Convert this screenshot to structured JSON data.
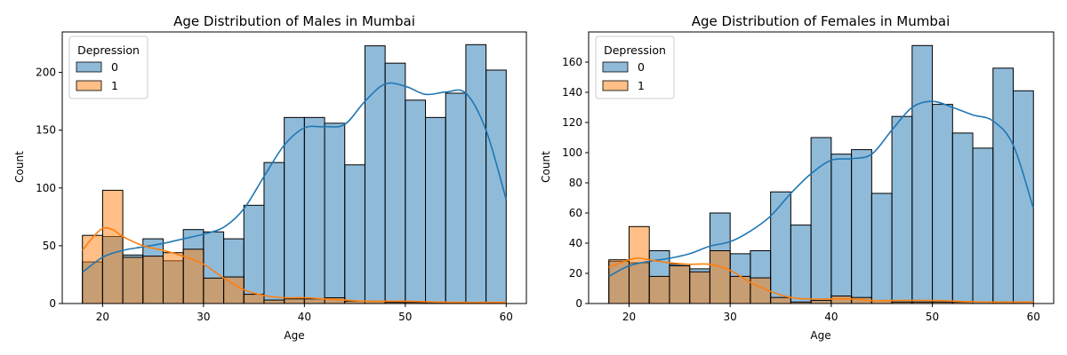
{
  "chart_data": [
    {
      "type": "histogram",
      "title": "Age Distribution of Males in Mumbai",
      "xlabel": "Age",
      "ylabel": "Count",
      "xlim": [
        16,
        62
      ],
      "ylim": [
        0,
        235
      ],
      "xticks": [
        20,
        30,
        40,
        50,
        60
      ],
      "yticks": [
        0,
        50,
        100,
        150,
        200
      ],
      "legend": {
        "title": "Depression",
        "position": "top-left",
        "entries": [
          "0",
          "1"
        ]
      },
      "bin_edges": [
        18,
        20,
        22,
        24,
        26,
        28,
        30,
        32,
        34,
        36,
        38,
        40,
        42,
        44,
        46,
        48,
        50,
        52,
        54,
        56,
        58,
        60
      ],
      "series": [
        {
          "name": "0",
          "color": "#1f77b4",
          "counts": [
            36,
            58,
            42,
            56,
            37,
            64,
            62,
            56,
            85,
            122,
            161,
            161,
            156,
            120,
            223,
            208,
            176,
            161,
            182,
            224,
            202
          ],
          "kde": [
            [
              18,
              27
            ],
            [
              20,
              40
            ],
            [
              22,
              46
            ],
            [
              24,
              49
            ],
            [
              26,
              52
            ],
            [
              28,
              56
            ],
            [
              30,
              60
            ],
            [
              32,
              66
            ],
            [
              34,
              82
            ],
            [
              36,
              110
            ],
            [
              38,
              137
            ],
            [
              40,
              152
            ],
            [
              42,
              153
            ],
            [
              44,
              155
            ],
            [
              46,
              175
            ],
            [
              48,
              190
            ],
            [
              50,
              188
            ],
            [
              52,
              181
            ],
            [
              54,
              183
            ],
            [
              56,
              182
            ],
            [
              58,
              150
            ],
            [
              60,
              90
            ]
          ]
        },
        {
          "name": "1",
          "color": "#ff7f0e",
          "counts": [
            59,
            98,
            40,
            41,
            44,
            47,
            22,
            23,
            8,
            3,
            4,
            4,
            5,
            2,
            2,
            1,
            1,
            1,
            1,
            1,
            1
          ],
          "kde": [
            [
              18,
              46
            ],
            [
              19,
              57
            ],
            [
              20,
              65
            ],
            [
              21,
              64
            ],
            [
              22,
              58
            ],
            [
              24,
              50
            ],
            [
              26,
              46
            ],
            [
              28,
              41
            ],
            [
              30,
              34
            ],
            [
              32,
              22
            ],
            [
              34,
              12
            ],
            [
              36,
              7
            ],
            [
              38,
              5
            ],
            [
              40,
              5
            ],
            [
              42,
              4
            ],
            [
              44,
              3
            ],
            [
              46,
              2
            ],
            [
              50,
              2
            ],
            [
              55,
              1
            ],
            [
              60,
              1
            ]
          ]
        }
      ]
    },
    {
      "type": "histogram",
      "title": "Age Distribution of Females in Mumbai",
      "xlabel": "Age",
      "ylabel": "Count",
      "xlim": [
        16,
        62
      ],
      "ylim": [
        0,
        180
      ],
      "xticks": [
        20,
        30,
        40,
        50,
        60
      ],
      "yticks": [
        0,
        20,
        40,
        60,
        80,
        100,
        120,
        140,
        160
      ],
      "legend": {
        "title": "Depression",
        "position": "top-left",
        "entries": [
          "0",
          "1"
        ]
      },
      "bin_edges": [
        18,
        20,
        22,
        24,
        26,
        28,
        30,
        32,
        34,
        36,
        38,
        40,
        42,
        44,
        46,
        48,
        50,
        52,
        54,
        56,
        58,
        60
      ],
      "series": [
        {
          "name": "0",
          "color": "#1f77b4",
          "counts": [
            28,
            27,
            35,
            26,
            23,
            60,
            33,
            35,
            74,
            52,
            110,
            99,
            102,
            73,
            124,
            171,
            132,
            113,
            103,
            156,
            141
          ],
          "kde": [
            [
              18,
              18
            ],
            [
              20,
              25
            ],
            [
              22,
              28
            ],
            [
              24,
              30
            ],
            [
              26,
              33
            ],
            [
              28,
              38
            ],
            [
              30,
              41
            ],
            [
              32,
              48
            ],
            [
              34,
              58
            ],
            [
              36,
              73
            ],
            [
              38,
              86
            ],
            [
              40,
              95
            ],
            [
              42,
              96
            ],
            [
              44,
              99
            ],
            [
              46,
              115
            ],
            [
              48,
              130
            ],
            [
              50,
              134
            ],
            [
              52,
              130
            ],
            [
              54,
              125
            ],
            [
              56,
              121
            ],
            [
              58,
              105
            ],
            [
              60,
              63
            ]
          ]
        },
        {
          "name": "1",
          "color": "#ff7f0e",
          "counts": [
            29,
            51,
            18,
            25,
            21,
            35,
            18,
            17,
            4,
            1,
            2,
            5,
            4,
            2,
            1,
            1,
            1,
            1,
            0,
            1,
            1
          ],
          "kde": [
            [
              18,
              24
            ],
            [
              20,
              29
            ],
            [
              21,
              30
            ],
            [
              22,
              29
            ],
            [
              24,
              27
            ],
            [
              26,
              26
            ],
            [
              28,
              26
            ],
            [
              30,
              22
            ],
            [
              32,
              14
            ],
            [
              34,
              8
            ],
            [
              36,
              4
            ],
            [
              38,
              3
            ],
            [
              40,
              3
            ],
            [
              42,
              3
            ],
            [
              44,
              2
            ],
            [
              46,
              2
            ],
            [
              50,
              2
            ],
            [
              55,
              1
            ],
            [
              60,
              1
            ]
          ]
        }
      ]
    }
  ]
}
